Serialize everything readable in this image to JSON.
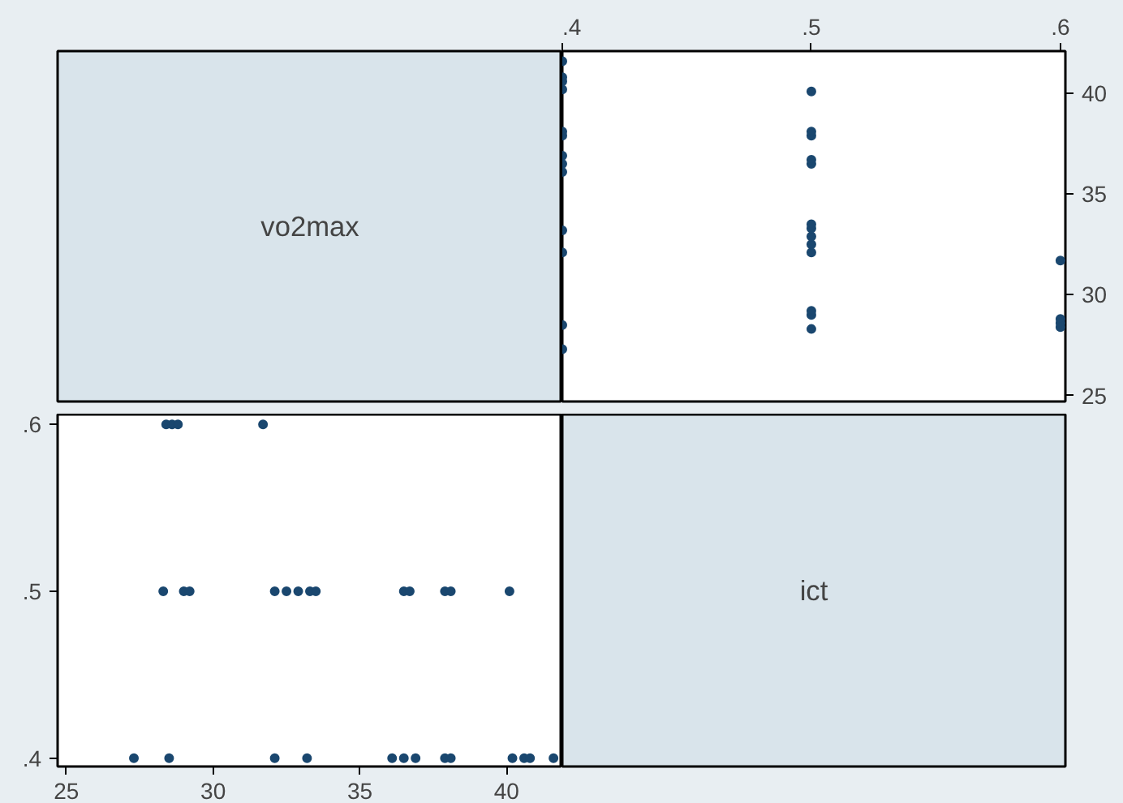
{
  "chart_data": [
    {
      "type": "other",
      "title": "vo2max"
    },
    {
      "type": "scatter",
      "x": [
        0.4,
        0.4,
        0.4,
        0.4,
        0.4,
        0.4,
        0.4,
        0.4,
        0.4,
        0.4,
        0.4,
        0.4,
        0.4,
        0.5,
        0.5,
        0.5,
        0.5,
        0.5,
        0.5,
        0.5,
        0.5,
        0.5,
        0.5,
        0.5,
        0.5,
        0.5,
        0.6,
        0.6,
        0.6,
        0.6
      ],
      "values": [
        27.3,
        28.5,
        32.1,
        33.2,
        36.1,
        36.5,
        36.9,
        37.9,
        38.1,
        40.2,
        40.6,
        40.8,
        41.6,
        28.3,
        29.0,
        29.2,
        32.1,
        32.5,
        32.9,
        33.3,
        33.5,
        36.5,
        36.7,
        37.9,
        38.1,
        40.1,
        28.4,
        28.6,
        28.8,
        31.7
      ],
      "color": "#1a476f",
      "marker": "circle",
      "xlim": [
        0.4,
        0.602
      ],
      "ylim": [
        24.7,
        42.1
      ],
      "xticks": [
        {
          "value": 0.4,
          "label": ".4"
        },
        {
          "value": 0.5,
          "label": ".5"
        },
        {
          "value": 0.6,
          "label": ".6"
        }
      ],
      "yticks": [
        25,
        30,
        35,
        40
      ]
    },
    {
      "type": "scatter",
      "x": [
        27.3,
        28.5,
        32.1,
        33.2,
        36.1,
        36.5,
        36.9,
        37.9,
        38.1,
        40.2,
        40.6,
        40.8,
        41.6,
        28.3,
        29.0,
        29.2,
        32.1,
        32.5,
        32.9,
        33.3,
        33.5,
        36.5,
        36.7,
        37.9,
        38.1,
        40.1,
        28.4,
        28.6,
        28.8,
        31.7
      ],
      "values": [
        0.4,
        0.4,
        0.4,
        0.4,
        0.4,
        0.4,
        0.4,
        0.4,
        0.4,
        0.4,
        0.4,
        0.4,
        0.4,
        0.5,
        0.5,
        0.5,
        0.5,
        0.5,
        0.5,
        0.5,
        0.5,
        0.5,
        0.5,
        0.5,
        0.5,
        0.5,
        0.6,
        0.6,
        0.6,
        0.6
      ],
      "color": "#1a476f",
      "marker": "circle",
      "xlim": [
        24.7,
        41.9
      ],
      "ylim": [
        0.395,
        0.606
      ],
      "xticks": [
        25,
        30,
        35,
        40
      ],
      "yticks": [
        {
          "value": 0.4,
          "label": ".4"
        },
        {
          "value": 0.5,
          "label": ".5"
        },
        {
          "value": 0.6,
          "label": ".6"
        }
      ]
    },
    {
      "type": "other",
      "title": "ict"
    }
  ]
}
